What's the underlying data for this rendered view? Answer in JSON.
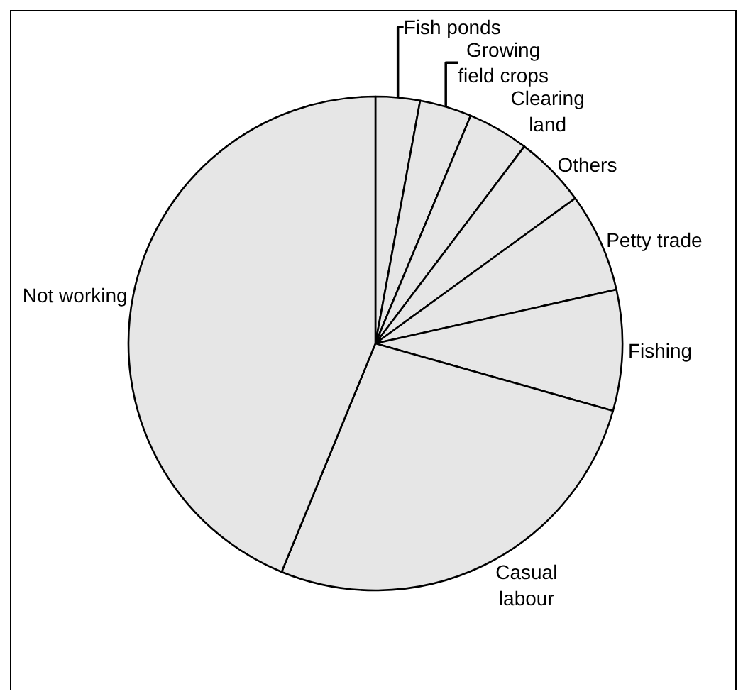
{
  "chart_data": {
    "type": "pie",
    "categories": [
      "Fish ponds",
      "Growing field crops",
      "Clearing land",
      "Others",
      "Petty trade",
      "Fishing",
      "Casual labour",
      "Not working"
    ],
    "values": [
      2.9,
      3.4,
      4.0,
      4.7,
      6.5,
      7.9,
      26.8,
      43.8
    ],
    "colors": [
      "#e6e6e6",
      "#e6e6e6",
      "#e6e6e6",
      "#e6e6e6",
      "#e6e6e6",
      "#e6e6e6",
      "#e6e6e6",
      "#e6e6e6"
    ],
    "legend": false
  }
}
